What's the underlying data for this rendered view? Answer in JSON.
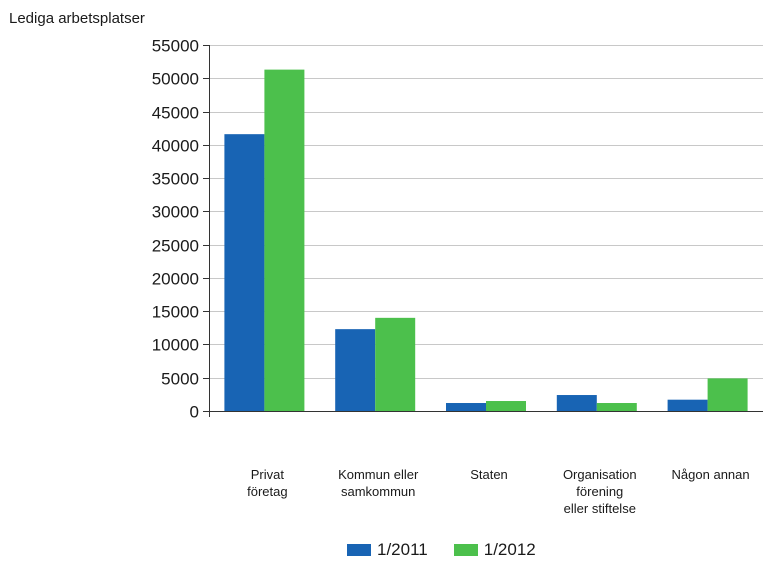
{
  "chart_data": {
    "type": "bar",
    "title": "",
    "xlabel": "",
    "ylabel": "Lediga arbetsplatser",
    "ylim": [
      0,
      55000
    ],
    "yticks": [
      0,
      5000,
      10000,
      15000,
      20000,
      25000,
      30000,
      35000,
      40000,
      45000,
      50000,
      55000
    ],
    "grid": true,
    "legend_position": "bottom",
    "categories": [
      "Privat\nföretag",
      "Kommun eller\nsamkommun",
      "Staten",
      "Organisation\nförening\neller stiftelse",
      "Någon annan"
    ],
    "series": [
      {
        "name": "1/2011",
        "color": "#1864b4",
        "values": [
          41600,
          12300,
          1200,
          2400,
          1700
        ]
      },
      {
        "name": "1/2012",
        "color": "#4cc04c",
        "values": [
          51300,
          14000,
          1500,
          1200,
          4900
        ]
      }
    ]
  }
}
